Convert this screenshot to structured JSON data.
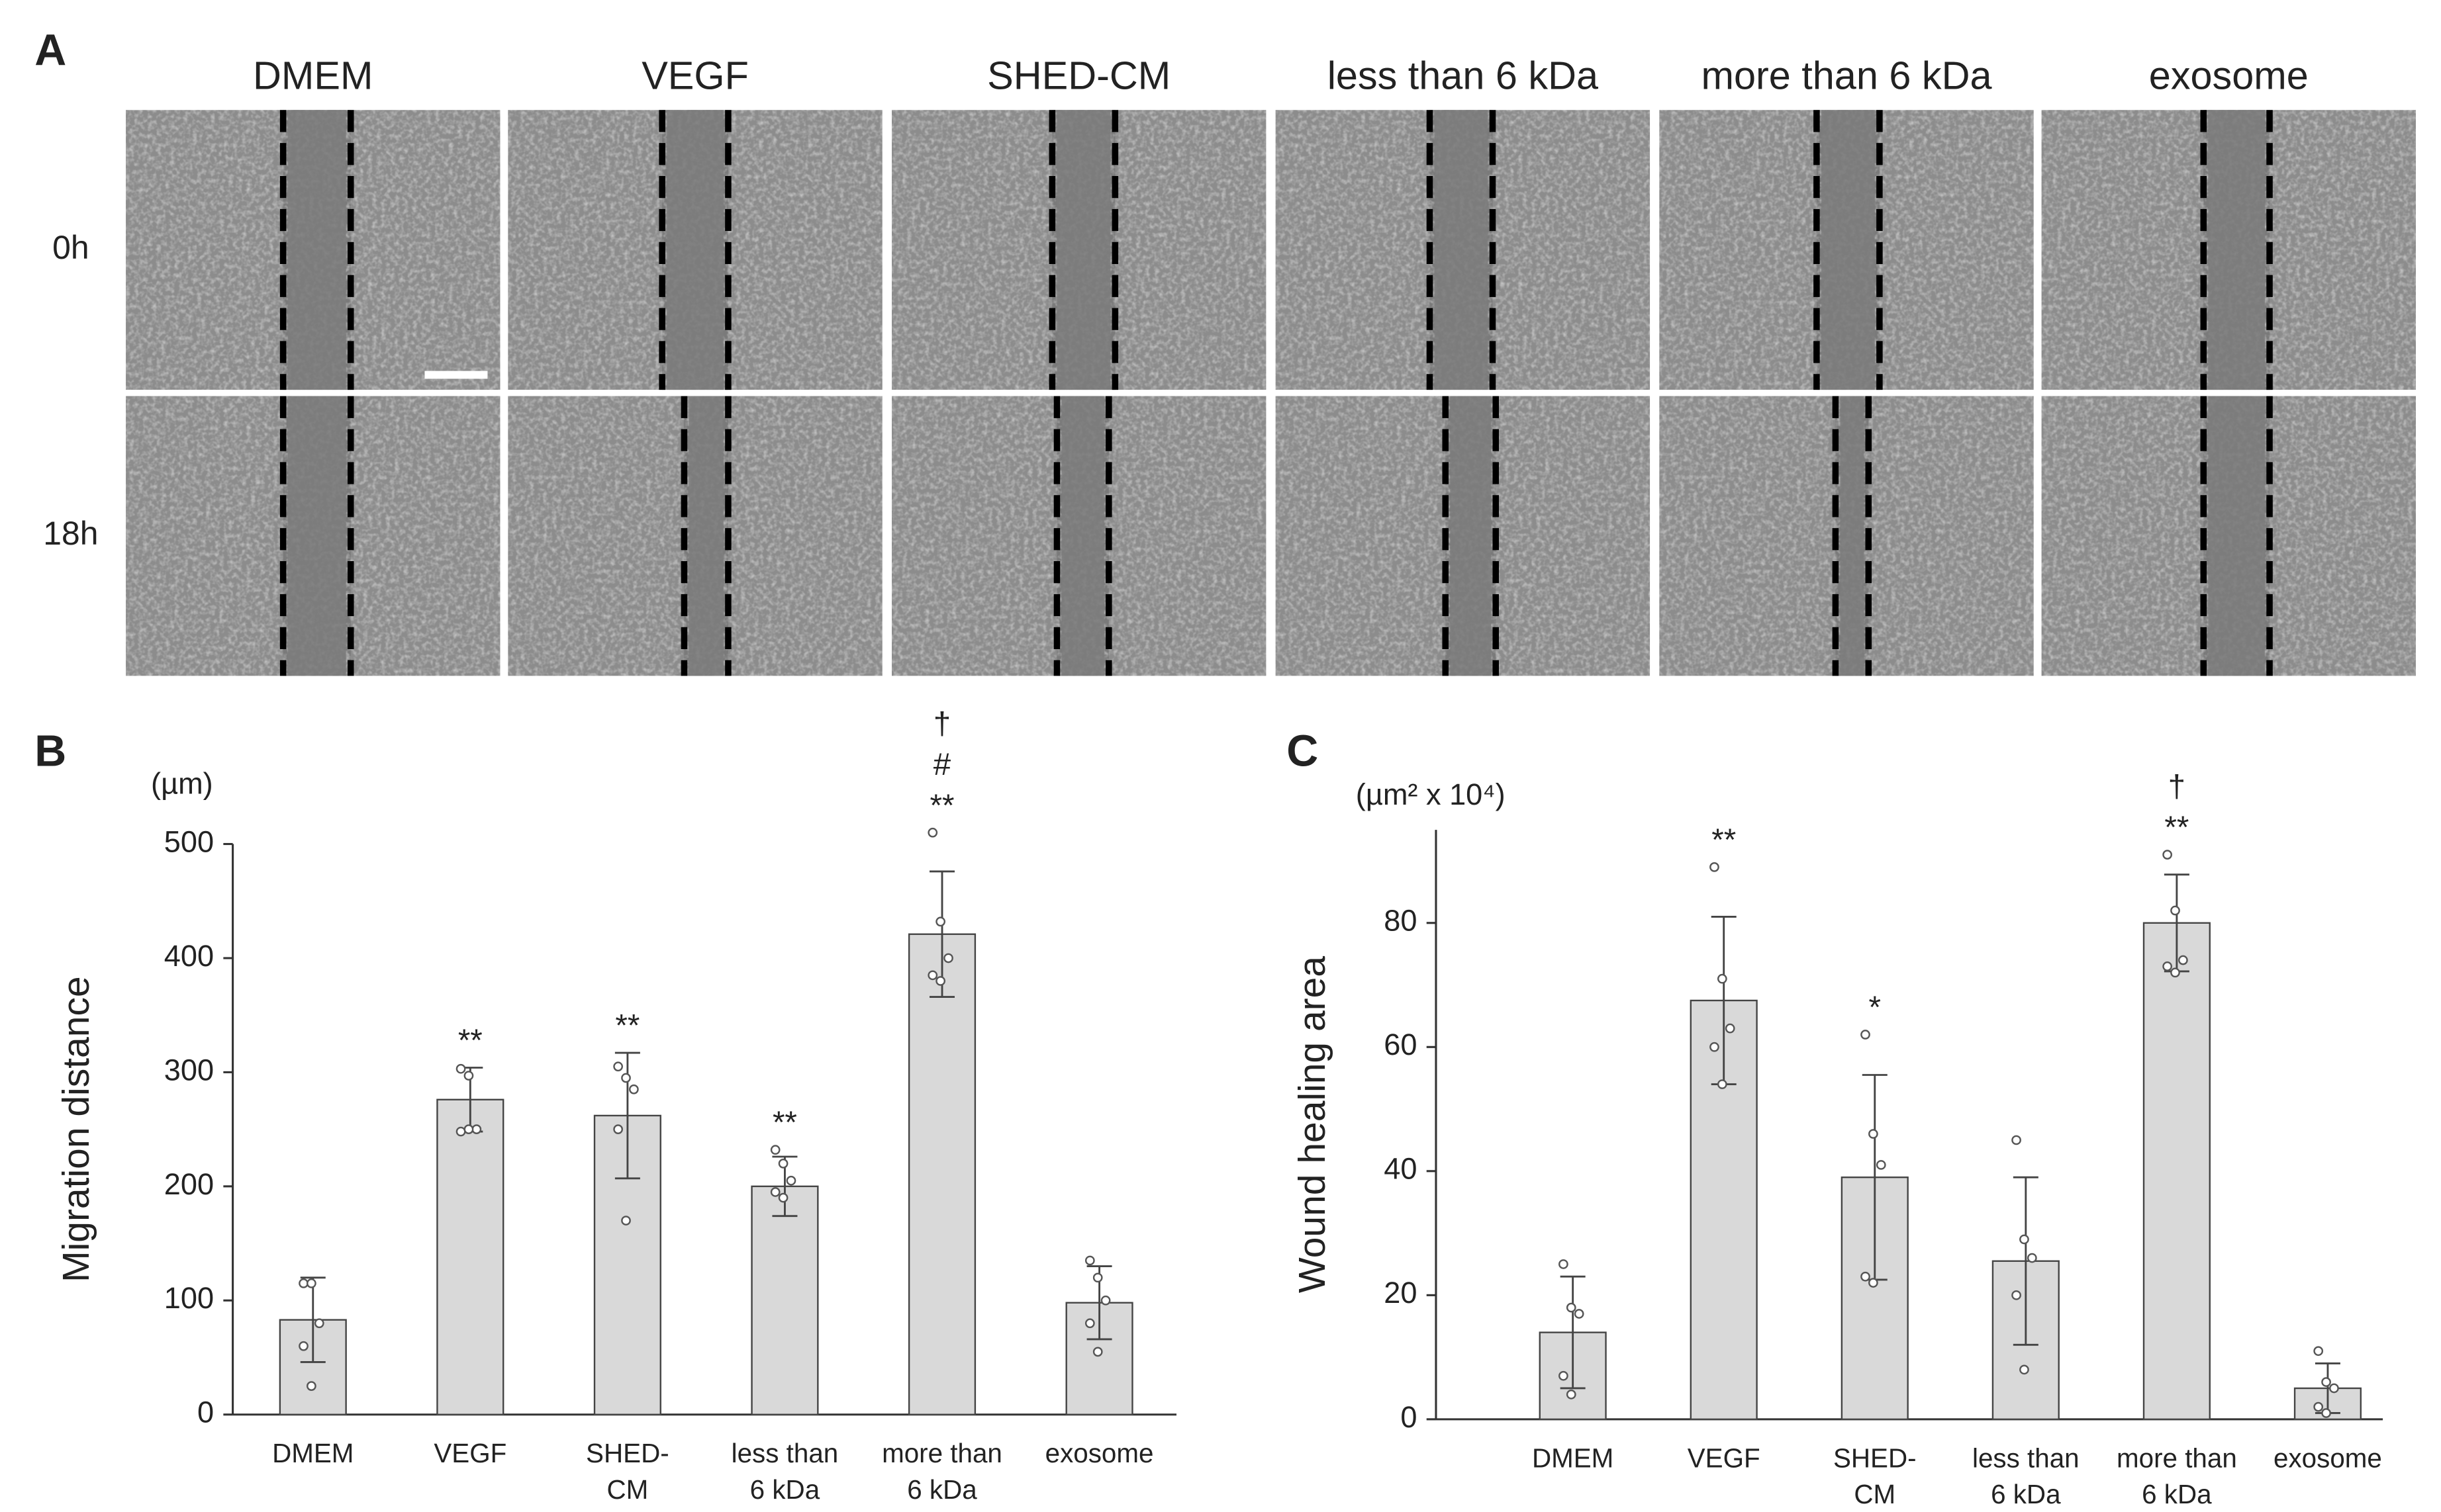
{
  "figure": {
    "panel_a": {
      "letter": "A",
      "columns": [
        "DMEM",
        "VEGF",
        "SHED-CM",
        "less than 6 kDa",
        "more than 6 kDa",
        "exosome"
      ],
      "rows": [
        "0h",
        "18h"
      ]
    }
  },
  "chart_data": [
    {
      "type": "bar",
      "letter": "B",
      "unit_label": "(µm)",
      "ylabel": "Migration distance",
      "categories": [
        [
          "DMEM"
        ],
        [
          "VEGF"
        ],
        [
          "SHED-",
          "CM"
        ],
        [
          "less than",
          "6 kDa"
        ],
        [
          "more than",
          "6 kDa"
        ],
        [
          "exosome"
        ]
      ],
      "values": [
        83,
        276,
        262,
        200,
        421,
        98
      ],
      "errors": [
        37,
        28,
        55,
        26,
        55,
        32
      ],
      "points": [
        [
          115,
          115,
          80,
          60,
          25
        ],
        [
          303,
          297,
          250,
          248,
          250
        ],
        [
          305,
          295,
          285,
          250,
          170
        ],
        [
          232,
          220,
          205,
          195,
          190
        ],
        [
          510,
          432,
          400,
          385,
          380
        ],
        [
          135,
          120,
          100,
          80,
          55
        ]
      ],
      "annotations": [
        [],
        [
          "**"
        ],
        [
          "**"
        ],
        [
          "**"
        ],
        [
          "**",
          "#",
          "†"
        ],
        []
      ],
      "color": "#d9d9d9",
      "ylim": [
        0,
        500
      ],
      "yticks": [
        0,
        100,
        200,
        300,
        400,
        500
      ]
    },
    {
      "type": "bar",
      "letter": "C",
      "unit_label": "(µm² x 10⁴)",
      "ylabel": "Wound healing area",
      "categories": [
        [
          "DMEM"
        ],
        [
          "VEGF"
        ],
        [
          "SHED-",
          "CM"
        ],
        [
          "less than",
          "6 kDa"
        ],
        [
          "more than",
          "6 kDa"
        ],
        [
          "exosome"
        ]
      ],
      "values": [
        14,
        67.5,
        39,
        25.5,
        80,
        5
      ],
      "errors": [
        9,
        13.5,
        16.5,
        13.5,
        7.8,
        4
      ],
      "points": [
        [
          25,
          18,
          17,
          7,
          4
        ],
        [
          89,
          71,
          63,
          60,
          54
        ],
        [
          62,
          46,
          41,
          23,
          22
        ],
        [
          45,
          29,
          26,
          20,
          8
        ],
        [
          91,
          82,
          74,
          73,
          72
        ],
        [
          11,
          6,
          5,
          2,
          1
        ]
      ],
      "annotations": [
        [],
        [
          "**"
        ],
        [
          "*"
        ],
        [],
        [
          "**",
          "†"
        ],
        []
      ],
      "color": "#d9d9d9",
      "ylim": [
        0,
        95
      ],
      "yticks": [
        0,
        20,
        40,
        60,
        80
      ]
    }
  ]
}
